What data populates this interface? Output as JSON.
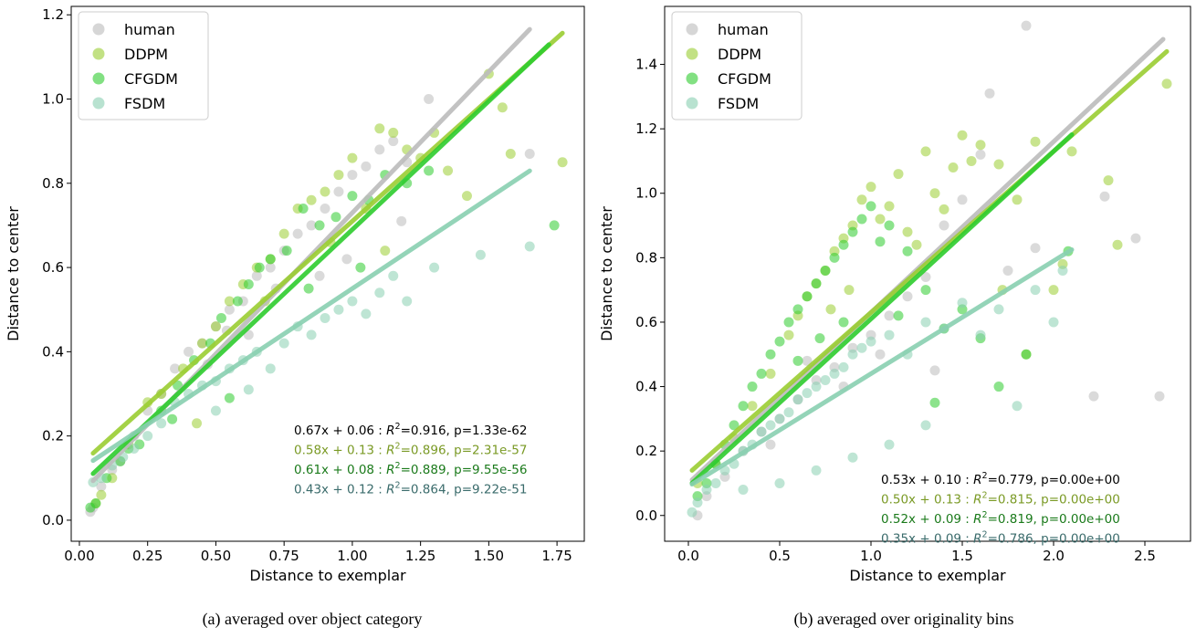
{
  "chart_data": [
    {
      "type": "scatter",
      "caption": "(a) averaged over object category",
      "xlabel": "Distance to exemplar",
      "ylabel": "Distance to center",
      "xlim": [
        -0.03,
        1.85
      ],
      "ylim": [
        -0.05,
        1.22
      ],
      "xticks": [
        0.0,
        0.25,
        0.5,
        0.75,
        1.0,
        1.25,
        1.5,
        1.75
      ],
      "xtick_labels": [
        "0.00",
        "0.25",
        "0.50",
        "0.75",
        "1.00",
        "1.25",
        "1.50",
        "1.75"
      ],
      "yticks": [
        0.0,
        0.2,
        0.4,
        0.6,
        0.8,
        1.0,
        1.2
      ],
      "ytick_labels": [
        "0.0",
        "0.2",
        "0.4",
        "0.6",
        "0.8",
        "1.0",
        "1.2"
      ],
      "legend_position": "top-left",
      "grid": false,
      "series": [
        {
          "name": "human",
          "color": "#bbbbbb",
          "fit": {
            "slope": 0.67,
            "intercept": 0.06,
            "x_range": [
              0.05,
              1.65
            ]
          },
          "equation": "0.67x + 0.06 : ",
          "stats": "=0.916, p=1.33e-62",
          "eq_color": "#000000",
          "x": [
            0.04,
            0.05,
            0.08,
            0.12,
            0.15,
            0.2,
            0.25,
            0.3,
            0.35,
            0.4,
            0.45,
            0.5,
            0.55,
            0.6,
            0.65,
            0.7,
            0.75,
            0.8,
            0.85,
            0.9,
            0.95,
            1.0,
            1.05,
            1.1,
            1.15,
            1.2,
            1.28,
            0.88,
            0.62,
            0.47,
            1.65,
            1.18,
            0.98,
            0.72,
            0.54
          ],
          "y": [
            0.02,
            0.03,
            0.08,
            0.12,
            0.14,
            0.2,
            0.26,
            0.3,
            0.36,
            0.4,
            0.42,
            0.46,
            0.5,
            0.52,
            0.58,
            0.6,
            0.64,
            0.68,
            0.7,
            0.74,
            0.78,
            0.82,
            0.84,
            0.88,
            0.9,
            0.85,
            1.0,
            0.58,
            0.44,
            0.37,
            0.87,
            0.71,
            0.62,
            0.55,
            0.45
          ]
        },
        {
          "name": "DDPM",
          "color": "#9acd32",
          "fit": {
            "slope": 0.58,
            "intercept": 0.13,
            "x_range": [
              0.05,
              1.77
            ]
          },
          "equation": "0.58x + 0.13 : ",
          "stats": "=0.896, p=2.31e-57",
          "eq_color": "#7a9a25",
          "x": [
            0.06,
            0.08,
            0.12,
            0.18,
            0.25,
            0.3,
            0.38,
            0.45,
            0.5,
            0.55,
            0.6,
            0.65,
            0.7,
            0.75,
            0.8,
            0.85,
            0.9,
            0.95,
            1.0,
            1.05,
            1.1,
            1.15,
            1.2,
            1.25,
            1.3,
            1.35,
            1.42,
            1.5,
            1.55,
            1.77,
            1.58,
            0.92,
            0.68,
            0.43,
            1.12
          ],
          "y": [
            0.04,
            0.06,
            0.1,
            0.18,
            0.28,
            0.3,
            0.36,
            0.42,
            0.46,
            0.52,
            0.56,
            0.6,
            0.62,
            0.68,
            0.74,
            0.76,
            0.78,
            0.82,
            0.86,
            0.74,
            0.93,
            0.92,
            0.88,
            0.86,
            0.92,
            0.83,
            0.77,
            1.06,
            0.98,
            0.85,
            0.87,
            0.66,
            0.52,
            0.23,
            0.64
          ]
        },
        {
          "name": "CFGDM",
          "color": "#2ecc2e",
          "fit": {
            "slope": 0.61,
            "intercept": 0.08,
            "x_range": [
              0.05,
              1.72
            ]
          },
          "equation": "0.61x + 0.08 : ",
          "stats": "=0.889, p=9.55e-56",
          "eq_color": "#1a7a1a",
          "x": [
            0.04,
            0.06,
            0.1,
            0.15,
            0.22,
            0.3,
            0.36,
            0.42,
            0.48,
            0.52,
            0.58,
            0.62,
            0.66,
            0.7,
            0.76,
            0.82,
            0.88,
            0.94,
            1.0,
            1.06,
            1.12,
            1.2,
            1.28,
            1.74,
            1.03,
            0.84,
            0.55,
            0.34,
            0.18
          ],
          "y": [
            0.03,
            0.04,
            0.1,
            0.14,
            0.18,
            0.26,
            0.32,
            0.38,
            0.42,
            0.48,
            0.52,
            0.56,
            0.6,
            0.62,
            0.64,
            0.74,
            0.7,
            0.72,
            0.77,
            0.76,
            0.82,
            0.8,
            0.83,
            0.7,
            0.6,
            0.55,
            0.29,
            0.24,
            0.17
          ]
        },
        {
          "name": "FSDM",
          "color": "#88cfb0",
          "fit": {
            "slope": 0.43,
            "intercept": 0.12,
            "x_range": [
              0.05,
              1.65
            ]
          },
          "equation": "0.43x + 0.12 : ",
          "stats": "=0.864, p=9.22e-51",
          "eq_color": "#3a6b6b",
          "x": [
            0.05,
            0.08,
            0.12,
            0.16,
            0.2,
            0.25,
            0.3,
            0.35,
            0.4,
            0.45,
            0.5,
            0.55,
            0.6,
            0.65,
            0.7,
            0.75,
            0.8,
            0.85,
            0.9,
            0.95,
            1.0,
            1.05,
            1.1,
            1.15,
            1.2,
            1.3,
            1.47,
            1.65,
            0.62,
            0.5
          ],
          "y": [
            0.09,
            0.1,
            0.13,
            0.15,
            0.17,
            0.2,
            0.23,
            0.28,
            0.3,
            0.32,
            0.33,
            0.36,
            0.38,
            0.4,
            0.36,
            0.42,
            0.46,
            0.44,
            0.48,
            0.5,
            0.52,
            0.49,
            0.54,
            0.58,
            0.52,
            0.6,
            0.63,
            0.65,
            0.31,
            0.26
          ]
        }
      ]
    },
    {
      "type": "scatter",
      "caption": "(b) averaged over originality bins",
      "xlabel": "Distance to exemplar",
      "ylabel": "Distance to center",
      "xlim": [
        -0.13,
        2.75
      ],
      "ylim": [
        -0.08,
        1.58
      ],
      "xticks": [
        0.0,
        0.5,
        1.0,
        1.5,
        2.0,
        2.5
      ],
      "xtick_labels": [
        "0.0",
        "0.5",
        "1.0",
        "1.5",
        "2.0",
        "2.5"
      ],
      "yticks": [
        0.0,
        0.2,
        0.4,
        0.6,
        0.8,
        1.0,
        1.2,
        1.4
      ],
      "ytick_labels": [
        "0.0",
        "0.2",
        "0.4",
        "0.6",
        "0.8",
        "1.0",
        "1.2",
        "1.4"
      ],
      "legend_position": "top-left",
      "grid": false,
      "series": [
        {
          "name": "human",
          "color": "#bbbbbb",
          "fit": {
            "slope": 0.53,
            "intercept": 0.1,
            "x_range": [
              0.02,
              2.6
            ]
          },
          "equation": "0.53x + 0.10 : ",
          "stats": "=0.779, p=0.00e+00",
          "eq_color": "#000000",
          "x": [
            0.05,
            0.1,
            0.2,
            0.3,
            0.4,
            0.5,
            0.6,
            0.7,
            0.8,
            0.9,
            1.0,
            1.1,
            1.2,
            1.3,
            1.4,
            1.5,
            1.6,
            1.65,
            1.85,
            2.22,
            2.28,
            2.45,
            2.58,
            1.9,
            1.75,
            1.35,
            1.05,
            0.85,
            0.65,
            0.45
          ],
          "y": [
            0.0,
            0.06,
            0.12,
            0.2,
            0.26,
            0.3,
            0.36,
            0.42,
            0.46,
            0.52,
            0.56,
            0.62,
            0.68,
            0.74,
            0.9,
            0.98,
            1.12,
            1.31,
            1.52,
            0.37,
            0.99,
            0.86,
            0.37,
            0.83,
            0.76,
            0.45,
            0.5,
            0.4,
            0.48,
            0.22
          ]
        },
        {
          "name": "DDPM",
          "color": "#9acd32",
          "fit": {
            "slope": 0.5,
            "intercept": 0.13,
            "x_range": [
              0.02,
              2.62
            ]
          },
          "equation": "0.50x + 0.13 : ",
          "stats": "=0.815, p=0.00e+00",
          "eq_color": "#7a9a25",
          "x": [
            0.05,
            0.15,
            0.25,
            0.35,
            0.45,
            0.55,
            0.6,
            0.65,
            0.7,
            0.75,
            0.8,
            0.85,
            0.9,
            0.95,
            1.0,
            1.05,
            1.1,
            1.15,
            1.2,
            1.25,
            1.3,
            1.35,
            1.4,
            1.45,
            1.5,
            1.55,
            1.6,
            1.7,
            1.8,
            1.9,
            2.0,
            2.1,
            2.3,
            2.35,
            2.62,
            1.85,
            1.72,
            2.05,
            0.78,
            0.88
          ],
          "y": [
            0.1,
            0.16,
            0.24,
            0.34,
            0.44,
            0.56,
            0.62,
            0.68,
            0.72,
            0.76,
            0.82,
            0.86,
            0.9,
            0.98,
            1.02,
            0.92,
            0.96,
            1.06,
            0.88,
            0.84,
            1.13,
            1.0,
            0.95,
            1.08,
            1.18,
            1.1,
            1.15,
            1.09,
            0.98,
            1.16,
            0.7,
            1.13,
            1.04,
            0.84,
            1.34,
            0.5,
            0.7,
            0.78,
            0.64,
            0.7
          ]
        },
        {
          "name": "CFGDM",
          "color": "#2ecc2e",
          "fit": {
            "slope": 0.52,
            "intercept": 0.09,
            "x_range": [
              0.02,
              2.1
            ]
          },
          "equation": "0.52x + 0.09 : ",
          "stats": "=0.819, p=0.00e+00",
          "eq_color": "#1a7a1a",
          "x": [
            0.05,
            0.1,
            0.15,
            0.2,
            0.25,
            0.3,
            0.35,
            0.4,
            0.45,
            0.5,
            0.55,
            0.6,
            0.65,
            0.7,
            0.75,
            0.8,
            0.85,
            0.9,
            0.95,
            1.0,
            1.05,
            1.1,
            1.2,
            1.3,
            1.4,
            1.5,
            1.6,
            1.7,
            1.85,
            2.08,
            0.6,
            0.72,
            0.85,
            1.15,
            1.35
          ],
          "y": [
            0.06,
            0.1,
            0.16,
            0.22,
            0.28,
            0.34,
            0.4,
            0.44,
            0.5,
            0.54,
            0.6,
            0.64,
            0.68,
            0.72,
            0.76,
            0.8,
            0.84,
            0.88,
            0.92,
            0.96,
            0.85,
            0.9,
            0.82,
            0.7,
            0.58,
            0.64,
            0.55,
            0.4,
            0.5,
            0.82,
            0.48,
            0.55,
            0.6,
            0.62,
            0.35
          ]
        },
        {
          "name": "FSDM",
          "color": "#88cfb0",
          "fit": {
            "slope": 0.35,
            "intercept": 0.09,
            "x_range": [
              0.02,
              2.1
            ]
          },
          "equation": "0.35x + 0.09 : ",
          "stats": "=0.786, p=0.00e+00",
          "eq_color": "#3a6b6b",
          "x": [
            0.02,
            0.05,
            0.1,
            0.15,
            0.2,
            0.25,
            0.3,
            0.35,
            0.4,
            0.45,
            0.5,
            0.55,
            0.6,
            0.65,
            0.7,
            0.75,
            0.8,
            0.85,
            0.9,
            0.95,
            1.0,
            1.1,
            1.2,
            1.3,
            1.4,
            1.5,
            1.6,
            1.7,
            1.8,
            1.9,
            2.0,
            2.05,
            0.3,
            0.5,
            0.7,
            0.9,
            1.1,
            1.3
          ],
          "y": [
            0.01,
            0.04,
            0.08,
            0.1,
            0.14,
            0.16,
            0.2,
            0.22,
            0.26,
            0.28,
            0.3,
            0.32,
            0.36,
            0.38,
            0.4,
            0.42,
            0.44,
            0.46,
            0.5,
            0.52,
            0.54,
            0.56,
            0.5,
            0.6,
            0.58,
            0.66,
            0.56,
            0.64,
            0.34,
            0.7,
            0.6,
            0.76,
            0.08,
            0.1,
            0.14,
            0.18,
            0.22,
            0.28
          ]
        }
      ]
    }
  ]
}
